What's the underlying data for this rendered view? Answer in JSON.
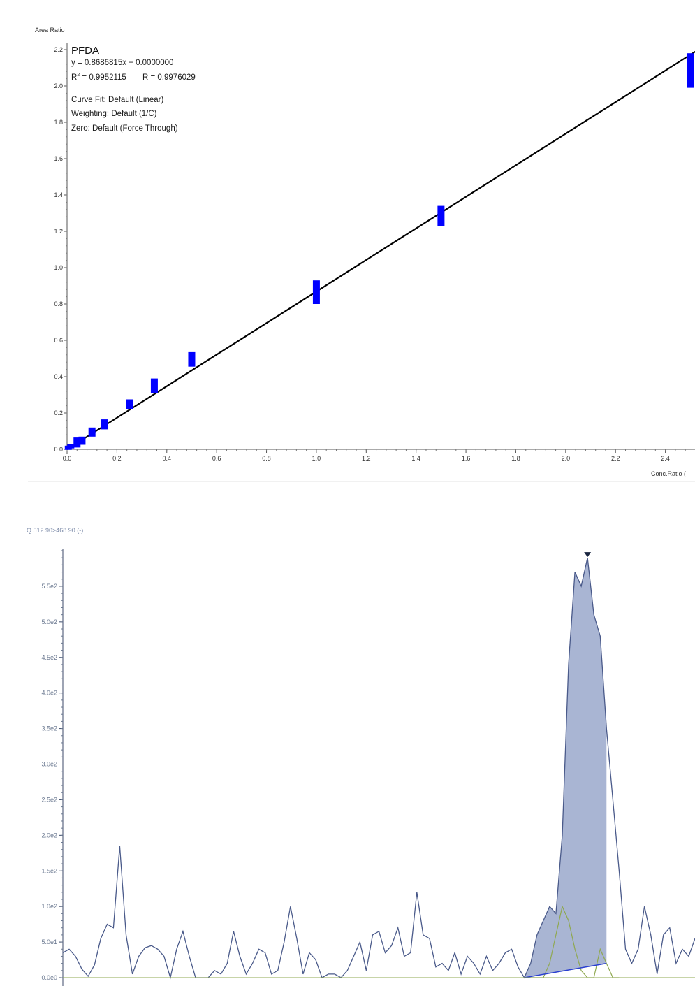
{
  "chart_data": [
    {
      "type": "scatter",
      "title": "PFDA",
      "ylabel": "Area Ratio",
      "xlabel": "Conc.Ratio (",
      "annotations": {
        "equation": "y = 0.8686815x  + 0.0000000",
        "r2_prefix": "R",
        "r2_value": " = 0.9952115",
        "r_text": "R = 0.9976029",
        "curve_fit": "Curve Fit: Default (Linear)",
        "weighting": "Weighting: Default (1/C)",
        "zero": "Zero: Default (Force Through)"
      },
      "xlim": [
        0,
        2.6
      ],
      "ylim": [
        0,
        2.2
      ],
      "xticks": [
        "0.0",
        "0.2",
        "0.4",
        "0.6",
        "0.8",
        "1.0",
        "1.2",
        "1.4",
        "1.6",
        "1.8",
        "2.0",
        "2.2",
        "2.4"
      ],
      "yticks": [
        "0.0",
        "0.2",
        "0.4",
        "0.6",
        "0.8",
        "1.0",
        "1.2",
        "1.4",
        "1.6",
        "1.8",
        "2.0",
        "2.2"
      ],
      "fit_line": {
        "slope": 0.8686815,
        "intercept": 0.0
      },
      "points": [
        {
          "x": 0.005,
          "y_low": 0.0,
          "y_high": 0.02
        },
        {
          "x": 0.015,
          "y_low": 0.005,
          "y_high": 0.03
        },
        {
          "x": 0.04,
          "y_low": 0.01,
          "y_high": 0.065
        },
        {
          "x": 0.06,
          "y_low": 0.025,
          "y_high": 0.07
        },
        {
          "x": 0.1,
          "y_low": 0.07,
          "y_high": 0.12
        },
        {
          "x": 0.15,
          "y_low": 0.11,
          "y_high": 0.165
        },
        {
          "x": 0.25,
          "y_low": 0.22,
          "y_high": 0.275
        },
        {
          "x": 0.35,
          "y_low": 0.31,
          "y_high": 0.39
        },
        {
          "x": 0.5,
          "y_low": 0.455,
          "y_high": 0.535
        },
        {
          "x": 1.0,
          "y_low": 0.8,
          "y_high": 0.93
        },
        {
          "x": 1.5,
          "y_low": 1.23,
          "y_high": 1.34
        },
        {
          "x": 2.5,
          "y_low": 1.99,
          "y_high": 2.18
        }
      ],
      "point_color": "#0000ff",
      "line_color": "#000000"
    },
    {
      "type": "line",
      "title": "Q 512.90>468.90 (-)",
      "yticks": [
        "0.0e0",
        "5.0e1",
        "1.0e2",
        "1.5e2",
        "2.0e2",
        "2.5e2",
        "3.0e2",
        "3.5e2",
        "4.0e2",
        "4.5e2",
        "5.0e2",
        "5.5e2"
      ],
      "ylim": [
        0,
        600
      ],
      "xlim": [
        0,
        100
      ],
      "trace_color": "#4a5a8a",
      "fill_color": "#8c9cc4",
      "baseline_color": "#2a3fd0",
      "secondary_color": "#8fa850",
      "series": [
        {
          "name": "",
          "x": [
            0,
            1,
            2,
            3,
            4,
            5,
            6,
            7,
            8,
            9,
            10,
            11,
            12,
            13,
            14,
            15,
            16,
            17,
            18,
            19,
            20,
            21,
            22,
            23,
            24,
            25,
            26,
            27,
            28,
            29,
            30,
            31,
            32,
            33,
            34,
            35,
            36,
            37,
            38,
            39,
            40,
            41,
            42,
            43,
            44,
            45,
            46,
            47,
            48,
            49,
            50,
            51,
            52,
            53,
            54,
            55,
            56,
            57,
            58,
            59,
            60,
            61,
            62,
            63,
            64,
            65,
            66,
            67,
            68,
            69,
            70,
            71,
            72,
            73,
            74,
            75,
            76,
            77,
            78,
            79,
            80,
            81,
            82,
            83,
            84,
            85,
            86,
            87,
            88,
            89,
            90,
            91,
            92,
            93,
            94,
            95,
            96,
            97,
            98,
            99,
            100
          ],
          "y": [
            35,
            40,
            30,
            12,
            2,
            18,
            55,
            75,
            70,
            185,
            60,
            5,
            30,
            42,
            45,
            40,
            30,
            0,
            40,
            65,
            30,
            0,
            0,
            0,
            10,
            5,
            20,
            65,
            30,
            5,
            20,
            40,
            35,
            5,
            10,
            50,
            100,
            55,
            5,
            35,
            25,
            0,
            5,
            5,
            0,
            10,
            30,
            50,
            10,
            60,
            65,
            35,
            45,
            70,
            30,
            35,
            120,
            60,
            55,
            15,
            20,
            10,
            35,
            5,
            30,
            20,
            5,
            30,
            10,
            20,
            35,
            40,
            15,
            0,
            20,
            60,
            80,
            100,
            90,
            200,
            440,
            570,
            550,
            590,
            510,
            480,
            350,
            250,
            150,
            40,
            20,
            40,
            100,
            60,
            5,
            60,
            70,
            20,
            40,
            30,
            55
          ]
        },
        {
          "name": "",
          "x": [
            73,
            76,
            77,
            78,
            79,
            80,
            81,
            82,
            83,
            84,
            85,
            86,
            87,
            88
          ],
          "y": [
            0,
            0,
            20,
            60,
            100,
            80,
            40,
            10,
            0,
            0,
            40,
            20,
            0,
            0
          ]
        }
      ],
      "peak": {
        "x_start": 73,
        "x_end": 86,
        "apex_x": 83,
        "apex_y": 590
      }
    }
  ]
}
